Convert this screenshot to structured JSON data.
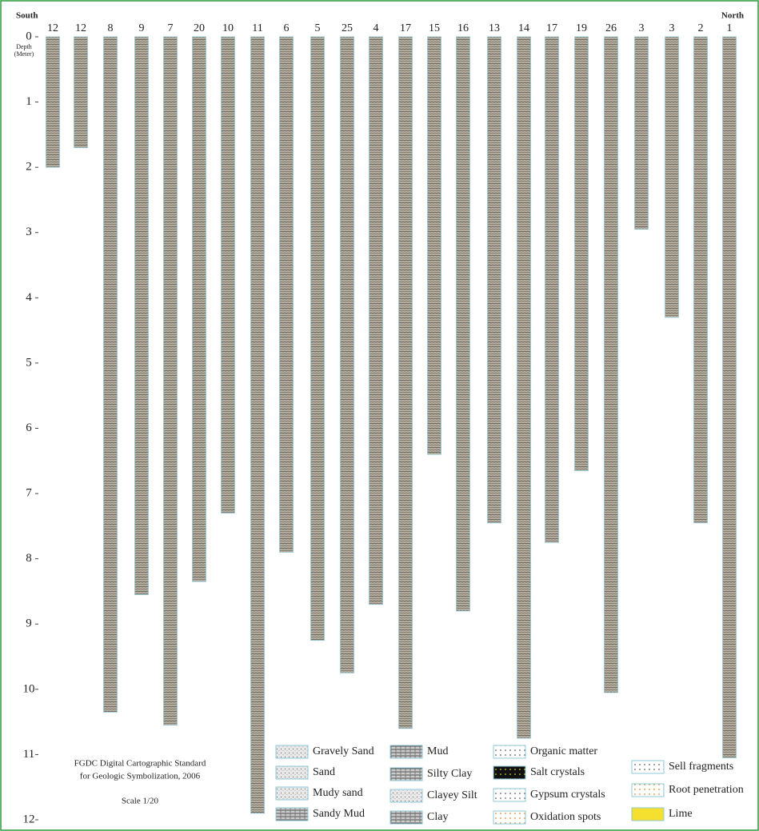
{
  "chart_data": {
    "type": "borehole",
    "left_label": "South",
    "right_label": "North",
    "y_label": [
      "Depth",
      "(Meter)"
    ],
    "categories": [
      "12",
      "12",
      "8",
      "9",
      "7",
      "20",
      "10",
      "11",
      "6",
      "5",
      "25",
      "4",
      "17",
      "15",
      "16",
      "13",
      "14",
      "17",
      "19",
      "26",
      "3",
      "3",
      "2",
      "1"
    ],
    "values": [
      2.0,
      1.7,
      10.35,
      8.55,
      10.55,
      8.35,
      7.3,
      11.9,
      7.9,
      9.25,
      9.75,
      8.7,
      10.6,
      6.4,
      8.8,
      7.45,
      10.75,
      7.75,
      6.65,
      10.05,
      2.95,
      4.3,
      7.45,
      11.05
    ],
    "ylim": [
      0,
      12
    ],
    "yticks": [
      0,
      1,
      2,
      3,
      4,
      5,
      6,
      7,
      8,
      9,
      10,
      11,
      12
    ],
    "annotation": [
      "FGDC Digital Cartographic Standard",
      "for Geologic Symbolization, 2006",
      "Scale 1/20"
    ],
    "legend": [
      [
        "Gravely Sand",
        "Sand",
        "Mudy sand",
        "Sandy Mud"
      ],
      [
        "Mud",
        "Silty Clay",
        "Clayey Silt",
        "Clay"
      ],
      [
        "Organic matter",
        "Salt crystals",
        "Gypsum crystals",
        "Oxidation spots"
      ],
      [
        "Sell fragments",
        "Root penetration",
        "Lime"
      ]
    ]
  }
}
